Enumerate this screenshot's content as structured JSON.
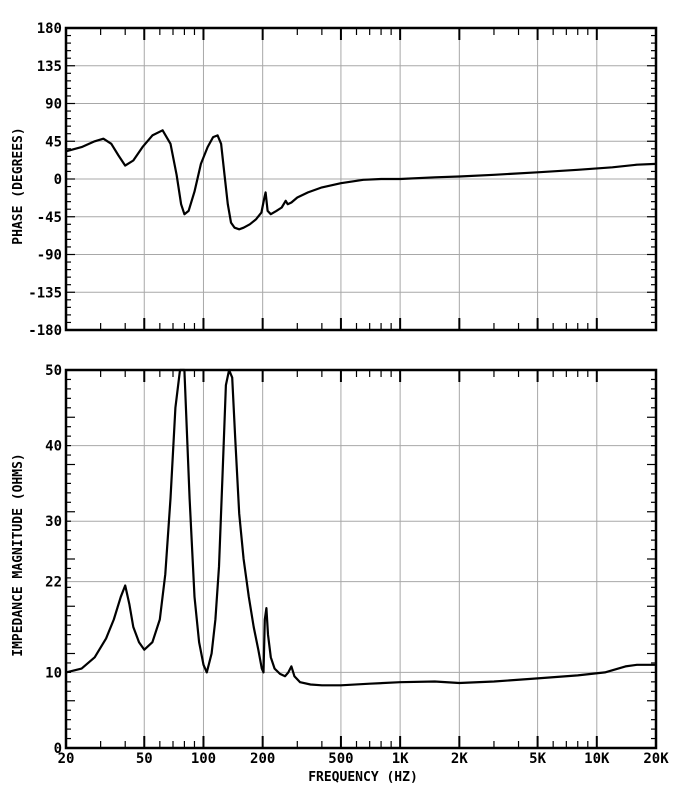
{
  "chart_data": [
    {
      "type": "line",
      "ylabel": "PHASE (DEGREES)",
      "xscale": "log",
      "xlim": [
        20,
        20000
      ],
      "ylim": [
        -180,
        180
      ],
      "x_tick_values": [
        20,
        50,
        100,
        200,
        500,
        1000,
        2000,
        5000,
        10000,
        20000
      ],
      "y_ticks": [
        180,
        135,
        90,
        45,
        0,
        -45,
        -90,
        -135,
        -180
      ],
      "y_tick_labels": [
        "180",
        "135",
        "90",
        "45",
        "0",
        "-45",
        "-90",
        "-135",
        "-180"
      ],
      "grid": true,
      "series": [
        {
          "x": [
            20,
            24,
            28,
            31,
            34,
            37,
            40,
            44,
            49,
            55,
            62,
            68,
            73,
            77,
            80,
            84,
            90,
            97,
            105,
            112,
            118,
            123,
            128,
            133,
            138,
            144,
            152,
            160,
            172,
            185,
            197,
            203,
            207,
            212,
            220,
            235,
            250,
            262,
            268,
            280,
            300,
            340,
            400,
            500,
            650,
            800,
            1000,
            1500,
            2000,
            3000,
            5000,
            8000,
            12000,
            16000,
            20000
          ],
          "y": [
            33,
            38,
            45,
            48,
            42,
            28,
            16,
            22,
            38,
            52,
            58,
            42,
            5,
            -30,
            -42,
            -38,
            -15,
            18,
            38,
            50,
            52,
            42,
            5,
            -30,
            -52,
            -58,
            -60,
            -58,
            -54,
            -48,
            -40,
            -25,
            -16,
            -38,
            -42,
            -38,
            -34,
            -26,
            -30,
            -28,
            -22,
            -16,
            -10,
            -5,
            -1,
            0,
            0,
            2,
            3,
            5,
            8,
            11,
            14,
            17,
            18
          ]
        }
      ]
    },
    {
      "type": "line",
      "xlabel": "FREQUENCY (HZ)",
      "ylabel": "IMPEDANCE MAGNITUDE (OHMS)",
      "xscale": "log",
      "xlim": [
        20,
        20000
      ],
      "ylim": [
        0,
        50
      ],
      "x_tick_values": [
        20,
        50,
        100,
        200,
        500,
        1000,
        2000,
        5000,
        10000,
        20000
      ],
      "x_tick_labels": [
        "20",
        "50",
        "100",
        "200",
        "500",
        "1K",
        "2K",
        "5K",
        "10K",
        "20K"
      ],
      "y_ticks": [
        0,
        10,
        22,
        30,
        40,
        50
      ],
      "y_tick_labels": [
        "0",
        "10",
        "22",
        "30",
        "40",
        "50"
      ],
      "grid": true,
      "series": [
        {
          "x": [
            20,
            24,
            28,
            32,
            35,
            38,
            40,
            42,
            44,
            47,
            50,
            55,
            60,
            64,
            68,
            72,
            76,
            80,
            85,
            90,
            95,
            100,
            104,
            110,
            115,
            120,
            125,
            130,
            135,
            140,
            145,
            152,
            160,
            170,
            180,
            190,
            198,
            202,
            205,
            209,
            213,
            220,
            230,
            245,
            260,
            270,
            280,
            290,
            310,
            350,
            400,
            500,
            700,
            1000,
            1500,
            2000,
            3000,
            5000,
            8000,
            11000,
            14000,
            16000,
            18000,
            20000
          ],
          "y": [
            10,
            10.5,
            12,
            14.5,
            17,
            20,
            21.5,
            19,
            16,
            14,
            13,
            14,
            17,
            23,
            33,
            45,
            51,
            50,
            33,
            20,
            14,
            11,
            10,
            12.5,
            17,
            24,
            36,
            48,
            51,
            49,
            41,
            31,
            25,
            20,
            16,
            13,
            10.5,
            10,
            17,
            18.5,
            15,
            12,
            10.5,
            9.8,
            9.5,
            10,
            10.8,
            9.5,
            8.7,
            8.4,
            8.3,
            8.3,
            8.5,
            8.7,
            8.8,
            8.6,
            8.8,
            9.2,
            9.6,
            10,
            10.8,
            11,
            11,
            11
          ]
        }
      ]
    }
  ]
}
